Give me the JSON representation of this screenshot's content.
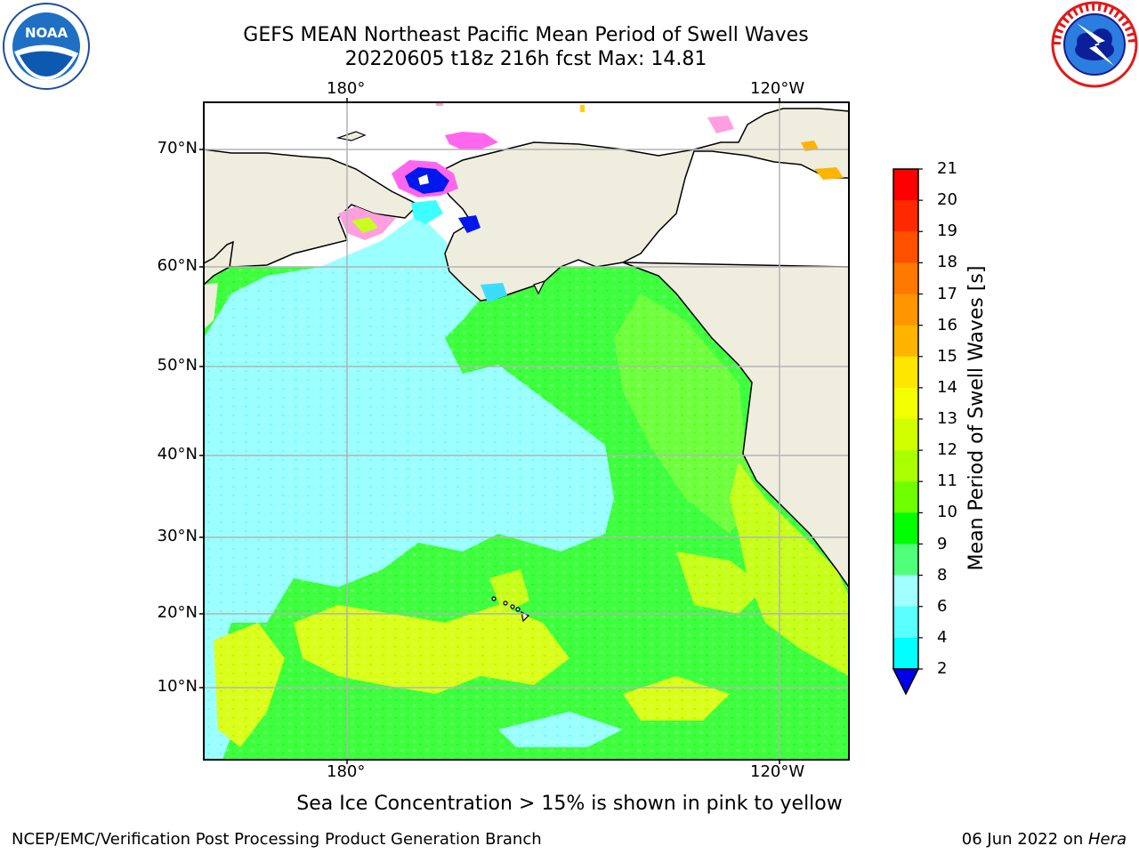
{
  "header": {
    "title_line1": "GEFS MEAN Northeast Pacific Mean Period of Swell Waves",
    "title_line2": "20220605 t18z 216h fcst   Max: 14.81"
  },
  "logos": {
    "left": {
      "icon": "noaa-logo-icon",
      "text": "NOAA"
    },
    "right": {
      "icon": "national-weather-service-logo-icon",
      "text": "NATIONAL WEATHER SERVICE"
    }
  },
  "map": {
    "lon_labels_top": [
      "180°",
      "120°W"
    ],
    "lon_labels_bottom": [
      "180°",
      "120°W"
    ],
    "lat_labels": [
      "70°N",
      "60°N",
      "50°N",
      "40°N",
      "30°N",
      "20°N",
      "10°N"
    ],
    "colors": {
      "land": "#efedde",
      "ocean_cyan": "#99ffff",
      "ocean_green": "#3dff3d",
      "ocean_yellow": "#d9ff1a",
      "sea_ice_pink": "#ff66ee",
      "sea_ice_blue": "#0018ee",
      "grid": "#b3b3b3"
    }
  },
  "colorbar": {
    "label": "Mean Period of Swell Waves [s]",
    "ticks": [
      "21",
      "20",
      "19",
      "18",
      "17",
      "16",
      "15",
      "14",
      "13",
      "12",
      "11",
      "10",
      "9",
      "8",
      "6",
      "4",
      "2"
    ],
    "colors": [
      "#ff0000",
      "#ff2800",
      "#ff5000",
      "#ff7800",
      "#ff9600",
      "#ffb400",
      "#ffe600",
      "#f2ff00",
      "#d2ff00",
      "#aaff00",
      "#6eff00",
      "#00ff00",
      "#50ff7a",
      "#a0ffff",
      "#5affff",
      "#00ffff",
      "#00e0ff",
      "#0078ff"
    ],
    "extend_color": "#0000ee"
  },
  "caption": "Sea Ice Concentration > 15% is shown in pink to yellow",
  "footer": {
    "left": "NCEP/EMC/Verification Post Processing Product Generation Branch",
    "right_prefix": "06 Jun 2022 on ",
    "right_host": "Hera"
  }
}
